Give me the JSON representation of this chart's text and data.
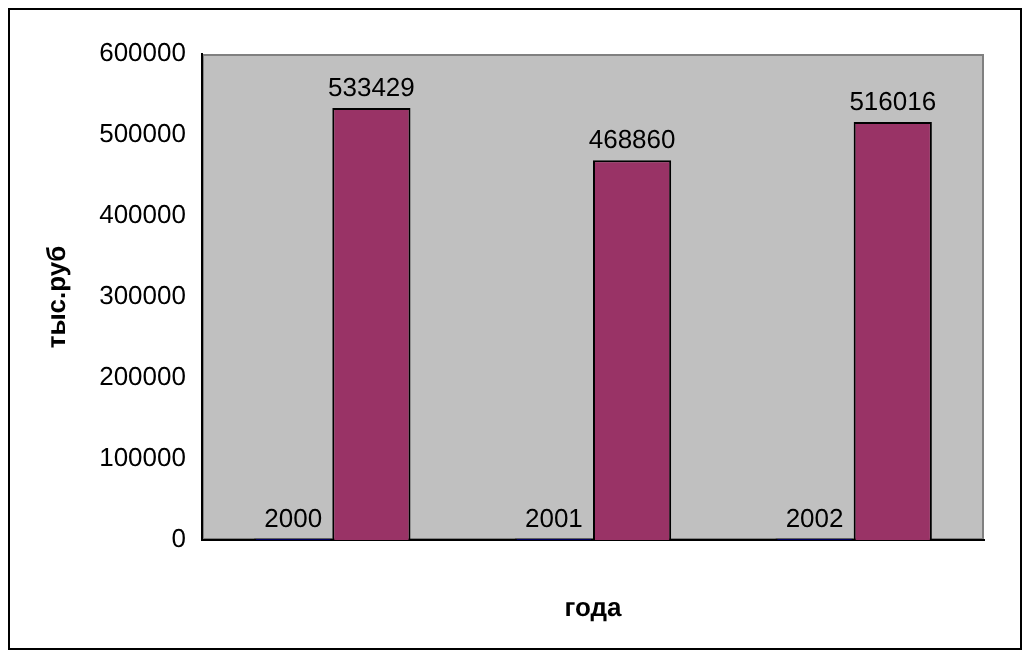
{
  "chart_data": {
    "type": "bar",
    "xlabel": "года",
    "ylabel": "тыс.руб",
    "categories": [
      null,
      null,
      null
    ],
    "series": [
      {
        "color": "#000080",
        "values": [
          2000,
          2001,
          2002
        ]
      },
      {
        "color": "#993366",
        "values": [
          533429,
          468860,
          516016
        ]
      }
    ],
    "ylim": [
      0,
      600000
    ],
    "yticks": [
      0,
      100000,
      200000,
      300000,
      400000,
      500000,
      600000
    ],
    "grid": false,
    "legend": false,
    "data_labels": true
  }
}
